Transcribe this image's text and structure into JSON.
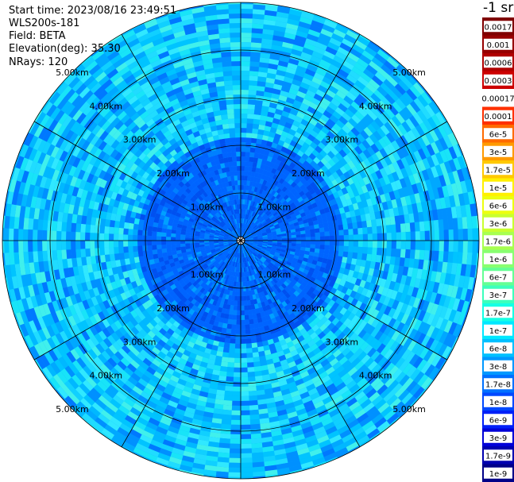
{
  "header": {
    "start_time": "Start time: 2023/08/16 23:49:51",
    "instrument": "WLS200s-181",
    "field": "Field: BETA",
    "elevation": "Elevation(deg): 35.30",
    "nrays": "NRays: 120"
  },
  "plot": {
    "type": "polar-ppi",
    "center_marker": "center-icon",
    "ring_labels": [
      "1.00km",
      "2.00km",
      "3.00km",
      "4.00km",
      "5.00km"
    ],
    "ring_distances_km": [
      1,
      2,
      3,
      4,
      5
    ],
    "radial_lines_deg": [
      0,
      30,
      60,
      90,
      120,
      150,
      180,
      210,
      240,
      270,
      300,
      330
    ]
  },
  "colorbar": {
    "unit": "-1 sr",
    "labels": [
      "0.0017",
      "0.001",
      "0.0006",
      "0.0003",
      "0.00017",
      "0.0001",
      "6e-5",
      "3e-5",
      "1.7e-5",
      "1e-5",
      "6e-6",
      "3e-6",
      "1.7e-6",
      "1e-6",
      "6e-7",
      "3e-7",
      "1.7e-7",
      "1e-7",
      "6e-8",
      "3e-8",
      "1.7e-8",
      "1e-8",
      "6e-9",
      "3e-9",
      "1.7e-9",
      "1e-9"
    ],
    "colors": [
      "#7f0000",
      "#960000",
      "#b00000",
      "#cc0000",
      "#ffffff",
      "#ff3000",
      "#ff6a00",
      "#ff9a00",
      "#ffc800",
      "#fff000",
      "#ecff10",
      "#c8ff30",
      "#a8ff50",
      "#88ff70",
      "#64ff94",
      "#3cffbc",
      "#16ffe4",
      "#00e8ff",
      "#00c0ff",
      "#0098ff",
      "#0070ff",
      "#0048ff",
      "#0020f8",
      "#0000d8",
      "#0000b0",
      "#000088"
    ]
  }
}
